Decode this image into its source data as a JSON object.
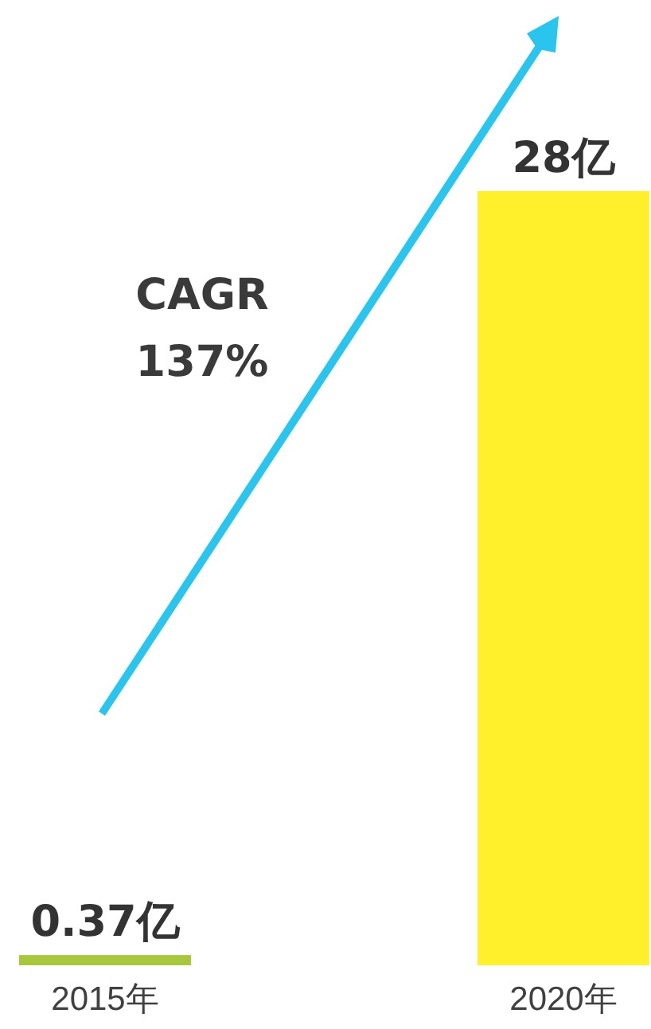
{
  "chart_data": {
    "type": "bar",
    "categories": [
      "2015年",
      "2020年"
    ],
    "values": [
      0.37,
      28
    ],
    "colors": [
      "#a9c73c",
      "#fff02b"
    ],
    "value_labels": [
      "0.37亿",
      "28亿"
    ],
    "annotations": [
      "CAGR\n137%"
    ]
  }
}
